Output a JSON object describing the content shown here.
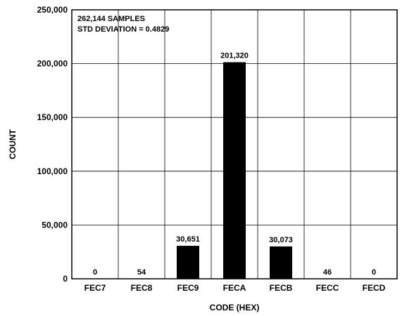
{
  "chart_data": {
    "type": "bar",
    "title": "",
    "xlabel": "CODE (HEX)",
    "ylabel": "COUNT",
    "categories": [
      "FEC7",
      "FEC8",
      "FEC9",
      "FECA",
      "FECB",
      "FECC",
      "FECD"
    ],
    "values": [
      0,
      54,
      30651,
      201320,
      30073,
      46,
      0
    ],
    "value_labels": [
      "0",
      "54",
      "30,651",
      "201,320",
      "30,073",
      "46",
      "0"
    ],
    "ylim": [
      0,
      250000
    ],
    "yticks": [
      0,
      50000,
      100000,
      150000,
      200000,
      250000
    ],
    "ytick_labels": [
      "0",
      "50,000",
      "100,000",
      "150,000",
      "200,000",
      "250,000"
    ],
    "grid": true,
    "bar_color": "#000000",
    "annotations": [
      "262,144 SAMPLES",
      "STD DEVIATION = 0.4829"
    ]
  }
}
